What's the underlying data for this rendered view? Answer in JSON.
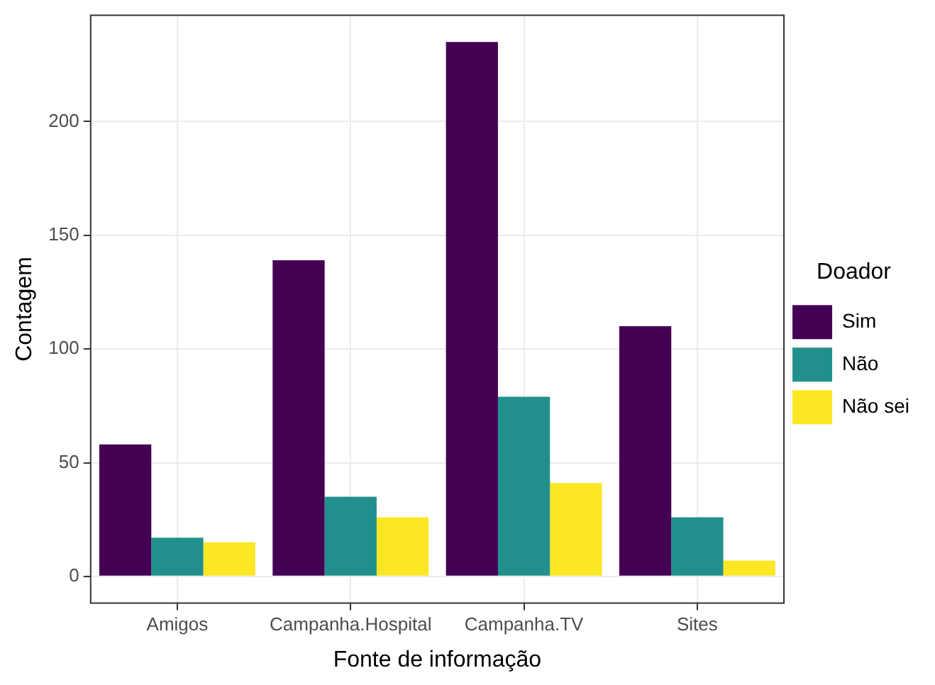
{
  "chart_data": {
    "type": "bar",
    "xlabel": "Fonte de informação",
    "ylabel": "Contagem",
    "legend_title": "Doador",
    "categories": [
      "Amigos",
      "Campanha.Hospital",
      "Campanha.TV",
      "Sites"
    ],
    "series": [
      {
        "name": "Sim",
        "color": "#440154",
        "values": [
          58,
          139,
          235,
          110
        ]
      },
      {
        "name": "Não",
        "color": "#21908c",
        "values": [
          17,
          35,
          79,
          26
        ]
      },
      {
        "name": "Não sei",
        "color": "#fde725",
        "values": [
          15,
          26,
          41,
          7
        ]
      }
    ],
    "ylim": [
      -11.7,
      246.7
    ],
    "yticks": [
      0,
      50,
      100,
      150,
      200
    ],
    "grid": true,
    "legend": "right"
  }
}
